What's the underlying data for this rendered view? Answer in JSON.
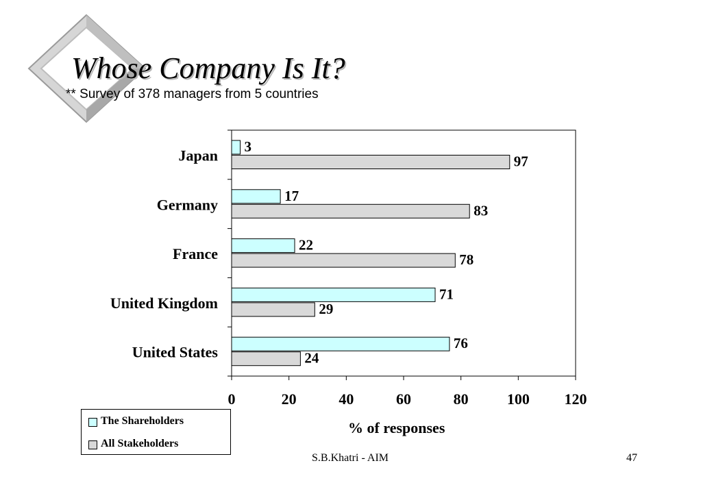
{
  "slide": {
    "title": "Whose Company Is It?",
    "subtitle": "** Survey of 378 managers from 5 countries",
    "footer_center": "S.B.Khatri - AIM",
    "page_number": "47"
  },
  "colors": {
    "shareholders": "#ccffff",
    "stakeholders": "#d9d9d9",
    "diamond_light": "#e0e0e0",
    "diamond_dark": "#a8a8a8"
  },
  "chart_data": {
    "type": "bar",
    "orientation": "horizontal",
    "categories": [
      "Japan",
      "Germany",
      "France",
      "United Kingdom",
      "United States"
    ],
    "series": [
      {
        "name": "The Shareholders",
        "values": [
          3,
          17,
          22,
          71,
          76
        ]
      },
      {
        "name": "All Stakeholders",
        "values": [
          97,
          83,
          78,
          29,
          24
        ]
      }
    ],
    "xlabel": "% of responses",
    "ylabel": "",
    "xlim": [
      0,
      120
    ],
    "xticks": [
      0,
      20,
      40,
      60,
      80,
      100,
      120
    ],
    "grid": false,
    "legend_position": "bottom-left",
    "data_labels": true
  }
}
